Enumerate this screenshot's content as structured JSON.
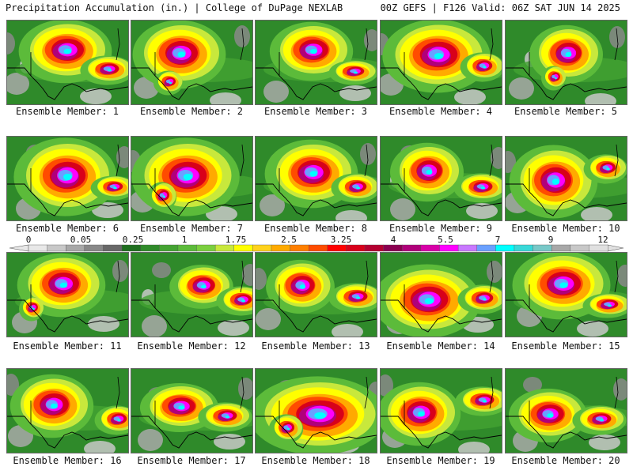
{
  "header": {
    "left": "Precipitation Accumulation (in.) | College of DuPage NEXLAB",
    "right": "00Z GEFS | F126 Valid: 06Z SAT JUN 14 2025"
  },
  "member_label_prefix": "Ensemble Member: ",
  "members": [
    1,
    2,
    3,
    4,
    5,
    6,
    7,
    8,
    9,
    10,
    11,
    12,
    13,
    14,
    15,
    16,
    17,
    18,
    19,
    20
  ],
  "colorbar": {
    "tick_labels": [
      "0",
      "0.05",
      "0.25",
      "1",
      "1.75",
      "2.5",
      "3.25",
      "4",
      "5.5",
      "7",
      "9",
      "12"
    ],
    "colors": [
      "#e8e8e8",
      "#c8c8c8",
      "#a8a8a8",
      "#888888",
      "#686868",
      "#1e6e1e",
      "#2f8a2a",
      "#44a332",
      "#5cbb3a",
      "#7bcf3e",
      "#c8e83c",
      "#ffff00",
      "#ffd21c",
      "#ffaa00",
      "#ff7f00",
      "#ff4c00",
      "#ff0000",
      "#d8001a",
      "#b40030",
      "#8a0050",
      "#b0007a",
      "#d800a8",
      "#ff00ff",
      "#c878ff",
      "#6aa0ff",
      "#00ffff",
      "#38d8d8",
      "#78c8c8",
      "#a8a8a8",
      "#c8c8c8",
      "#e0e0e0"
    ]
  },
  "colors": {
    "background": "#ffffff",
    "low": "#2f8a2a",
    "mid": "#ffff00",
    "high": "#ff0000",
    "very_high": "#d800a8",
    "extreme": "#00ffff"
  }
}
